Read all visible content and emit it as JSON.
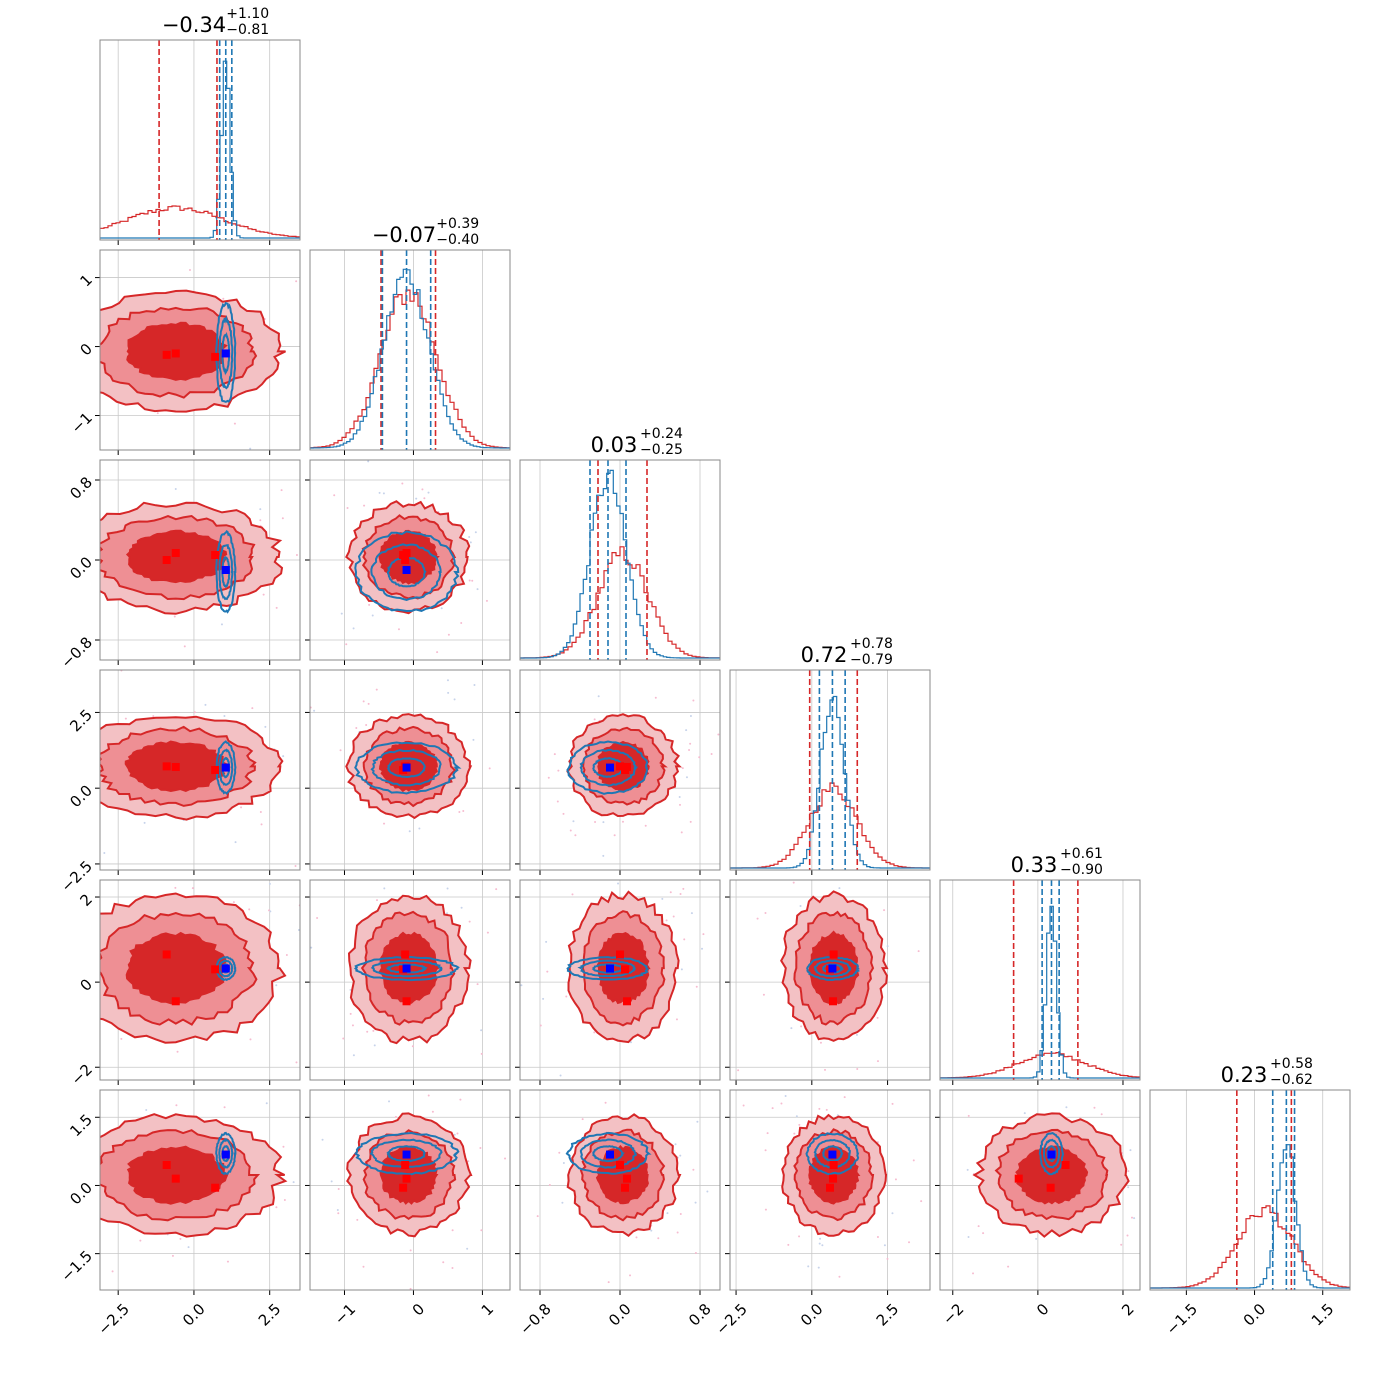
{
  "chart_data": {
    "type": "corner",
    "n_params": 6,
    "colors": {
      "red": "#d62728",
      "blue": "#1f77b4",
      "red_fill_light": "#f3c1c4",
      "red_fill_mid": "#ee8f94",
      "red_fill_dark": "#d62728",
      "marker_red": "#ff0000",
      "marker_blue": "#0000ff"
    },
    "params": [
      {
        "index": 0,
        "title": {
          "value": "−0.34",
          "plus": "+1.10",
          "minus": "−0.81"
        },
        "range": [
          -3.1,
          3.5
        ],
        "ticks": [
          -2.5,
          0.0,
          2.5
        ],
        "tick_labels": [
          "−2.5",
          "0.0",
          "2.5"
        ],
        "red": {
          "mu": -0.6,
          "sigma": 1.6,
          "quantiles": [
            -1.15,
            -0.34,
            0.76
          ]
        },
        "blue": {
          "mu": 1.05,
          "sigma": 0.14,
          "quantiles": [
            0.85,
            1.05,
            1.25
          ]
        },
        "truth_blue": 1.05,
        "truth_red": [
          -0.9,
          -0.6,
          0.7
        ]
      },
      {
        "index": 1,
        "title": {
          "value": "−0.07",
          "plus": "+0.39",
          "minus": "−0.40"
        },
        "range": [
          -1.5,
          1.4
        ],
        "ticks": [
          -1,
          0,
          1
        ],
        "tick_labels": [
          "−1",
          "0",
          "1"
        ],
        "red": {
          "mu": -0.07,
          "sigma": 0.4,
          "quantiles": [
            -0.47,
            -0.07,
            0.32
          ]
        },
        "blue": {
          "mu": -0.1,
          "sigma": 0.33,
          "quantiles": [
            -0.45,
            -0.1,
            0.25
          ]
        },
        "truth_blue": -0.1,
        "truth_red": [
          -0.12,
          -0.1,
          -0.15
        ]
      },
      {
        "index": 2,
        "title": {
          "value": "0.03",
          "plus": "+0.24",
          "minus": "−0.25"
        },
        "range": [
          -1.0,
          1.0
        ],
        "ticks": [
          -0.8,
          0.0,
          0.8
        ],
        "tick_labels": [
          "−0.8",
          "0.0",
          "0.8"
        ],
        "red": {
          "mu": 0.03,
          "sigma": 0.25,
          "quantiles": [
            -0.22,
            0.03,
            0.27
          ]
        },
        "blue": {
          "mu": -0.12,
          "sigma": 0.18,
          "quantiles": [
            -0.3,
            -0.12,
            0.06
          ]
        },
        "truth_blue": -0.1,
        "truth_red": [
          0.0,
          0.07,
          0.05
        ]
      },
      {
        "index": 3,
        "title": {
          "value": "0.72",
          "plus": "+0.78",
          "minus": "−0.79"
        },
        "range": [
          -2.7,
          3.9
        ],
        "ticks": [
          -2.5,
          0.0,
          2.5
        ],
        "tick_labels": [
          "−2.5",
          "0.0",
          "2.5"
        ],
        "red": {
          "mu": 0.72,
          "sigma": 0.78,
          "quantiles": [
            -0.07,
            0.72,
            1.5
          ]
        },
        "blue": {
          "mu": 0.68,
          "sigma": 0.38,
          "quantiles": [
            0.25,
            0.68,
            1.1
          ]
        },
        "truth_blue": 0.68,
        "truth_red": [
          0.72,
          0.7,
          0.6
        ]
      },
      {
        "index": 4,
        "title": {
          "value": "0.33",
          "plus": "+0.61",
          "minus": "−0.90"
        },
        "range": [
          -2.3,
          2.4
        ],
        "ticks": [
          -2,
          0,
          2
        ],
        "tick_labels": [
          "−2",
          "0",
          "2"
        ],
        "red": {
          "mu": 0.33,
          "sigma": 0.8,
          "quantiles": [
            -0.57,
            0.33,
            0.94
          ]
        },
        "blue": {
          "mu": 0.32,
          "sigma": 0.12,
          "quantiles": [
            0.1,
            0.32,
            0.5
          ]
        },
        "truth_blue": 0.32,
        "truth_red": [
          0.65,
          -0.45,
          0.3
        ]
      },
      {
        "index": 5,
        "title": {
          "value": "0.23",
          "plus": "+0.58",
          "minus": "−0.62"
        },
        "range": [
          -2.3,
          2.1
        ],
        "ticks": [
          -1.5,
          0.0,
          1.5
        ],
        "tick_labels": [
          "−1.5",
          "0.0",
          "1.5"
        ],
        "red": {
          "mu": 0.23,
          "sigma": 0.6,
          "quantiles": [
            -0.39,
            0.23,
            0.81
          ]
        },
        "blue": {
          "mu": 0.7,
          "sigma": 0.2,
          "quantiles": [
            0.4,
            0.7,
            0.88
          ]
        },
        "truth_blue": 0.68,
        "truth_red": [
          0.45,
          0.15,
          -0.05
        ]
      }
    ],
    "x_tick_rotation_deg": -45,
    "y_tick_rotation_deg": -45,
    "grid": true
  }
}
